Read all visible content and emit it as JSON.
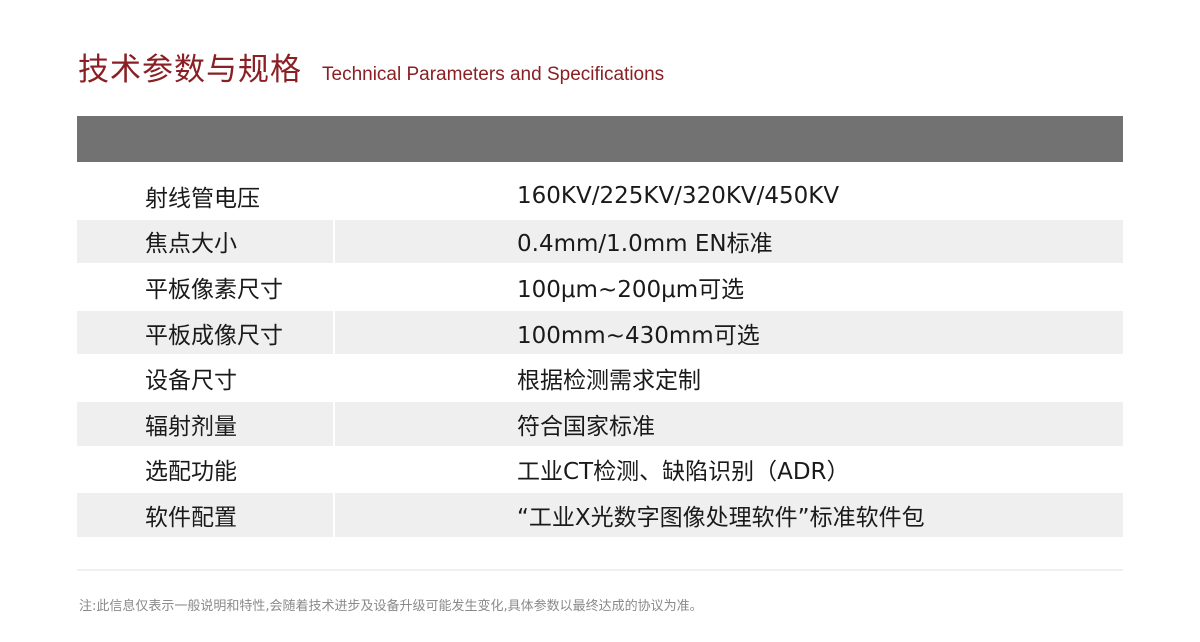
{
  "title": {
    "cn": "技术参数与规格",
    "en": "Technical Parameters and Specifications"
  },
  "colors": {
    "accent": "#8a1f24",
    "header_bar": "#737272",
    "row_alt": "#efefef"
  },
  "rows": [
    {
      "label": "射线管电压",
      "value": "160KV/225KV/320KV/450KV"
    },
    {
      "label": "焦点大小",
      "value": "0.4mm/1.0mm EN标准"
    },
    {
      "label": "平板像素尺寸",
      "value": "100μm~200μm可选"
    },
    {
      "label": "平板成像尺寸",
      "value": "100mm~430mm可选"
    },
    {
      "label": "设备尺寸",
      "value": "根据检测需求定制"
    },
    {
      "label": "辐射剂量",
      "value": "符合国家标准"
    },
    {
      "label": "选配功能",
      "value": "工业CT检测、缺陷识别（ADR）"
    },
    {
      "label": "软件配置",
      "value": "“工业X光数字图像处理软件”标准软件包"
    }
  ],
  "note": "注:此信息仅表示一般说明和特性,会随着技术进步及设备升级可能发生变化,具体参数以最终达成的协议为准。"
}
